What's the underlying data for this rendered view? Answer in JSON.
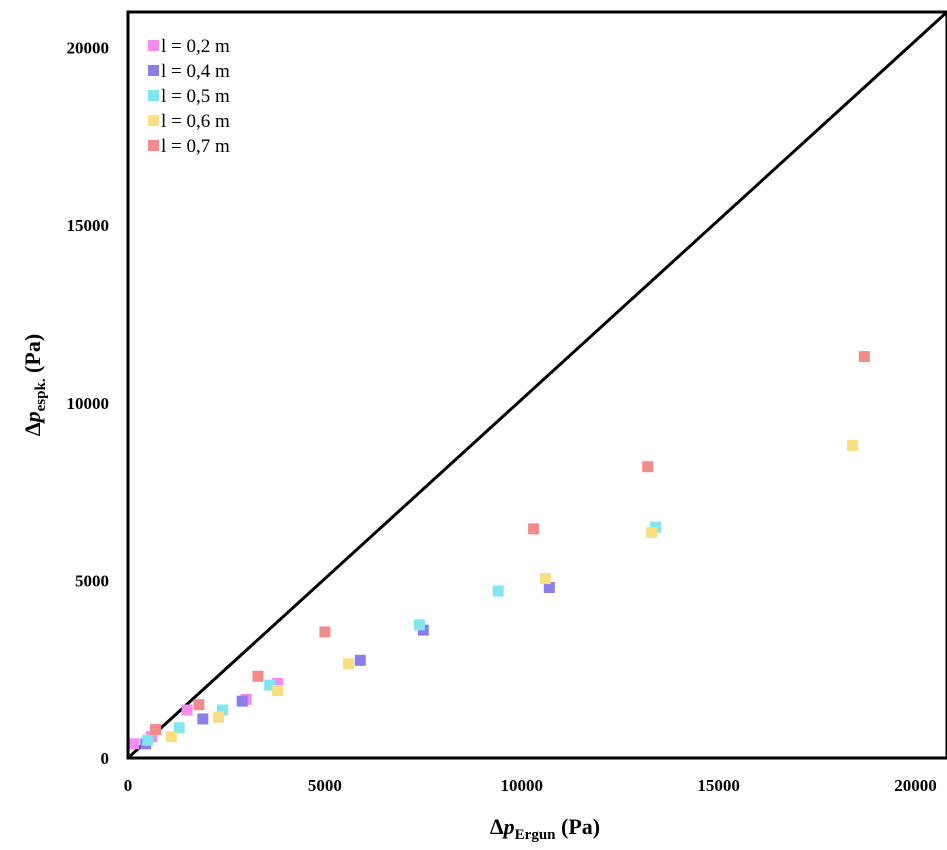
{
  "chart_data": {
    "type": "scatter",
    "title": "",
    "xlabel": {
      "prefix": "Δ",
      "var": "p",
      "sub": "Ergun",
      "unit": " (Pa)"
    },
    "ylabel": {
      "prefix": "Δ",
      "var": "p",
      "sub": "espk.",
      "unit": " (Pa)"
    },
    "xlim": [
      0,
      20800
    ],
    "ylim": [
      0,
      21000
    ],
    "xticks": [
      0,
      5000,
      10000,
      15000,
      20000
    ],
    "yticks": [
      0,
      5000,
      10000,
      15000,
      20000
    ],
    "grid": false,
    "legend_position": "top-left",
    "reference_line": {
      "from": [
        0,
        0
      ],
      "to": [
        20800,
        21000
      ],
      "color": "#000000"
    },
    "series": [
      {
        "name": "l = 0,2 m",
        "color": "#F58AF0",
        "points": [
          [
            150,
            400
          ],
          [
            600,
            600
          ],
          [
            1500,
            1350
          ],
          [
            3000,
            1650
          ],
          [
            3800,
            2100
          ]
        ]
      },
      {
        "name": "l = 0,4 m",
        "color": "#8B7EEC",
        "points": [
          [
            450,
            400
          ],
          [
            1900,
            1100
          ],
          [
            2900,
            1600
          ],
          [
            5900,
            2750
          ],
          [
            7500,
            3600
          ],
          [
            10700,
            4800
          ]
        ]
      },
      {
        "name": "l = 0,5 m",
        "color": "#7FE6F2",
        "points": [
          [
            500,
            500
          ],
          [
            1300,
            850
          ],
          [
            2400,
            1350
          ],
          [
            3600,
            2050
          ],
          [
            7400,
            3750
          ],
          [
            9400,
            4700
          ],
          [
            13400,
            6500
          ]
        ]
      },
      {
        "name": "l = 0,6 m",
        "color": "#F9DF7E",
        "points": [
          [
            1100,
            600
          ],
          [
            2300,
            1150
          ],
          [
            3800,
            1900
          ],
          [
            5600,
            2650
          ],
          [
            10600,
            5050
          ],
          [
            13300,
            6350
          ],
          [
            18400,
            8800
          ]
        ]
      },
      {
        "name": "l = 0,7 m",
        "color": "#F58A8A",
        "points": [
          [
            700,
            800
          ],
          [
            1800,
            1500
          ],
          [
            3300,
            2300
          ],
          [
            5000,
            3550
          ],
          [
            10300,
            6450
          ],
          [
            13200,
            8200
          ],
          [
            18700,
            11300
          ]
        ]
      }
    ]
  }
}
